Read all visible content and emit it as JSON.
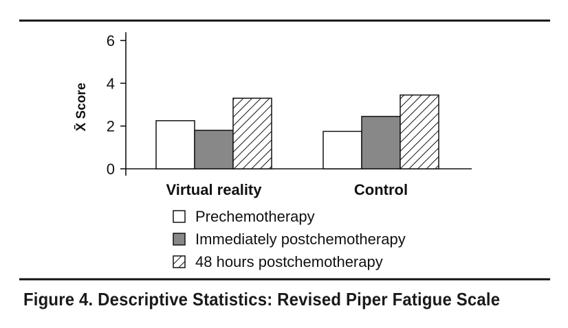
{
  "chart_data": {
    "type": "bar",
    "title": "Figure 4. Descriptive Statistics: Revised Piper Fatigue Scale",
    "xlabel": "",
    "ylabel": "X̄ Score",
    "ylim": [
      0,
      6
    ],
    "yticks": [
      "0",
      "2",
      "4",
      "6"
    ],
    "categories": [
      "Virtual reality",
      "Control"
    ],
    "series": [
      {
        "name": "Prechemotherapy",
        "values": [
          2.25,
          1.75
        ],
        "fill": "#ffffff",
        "pattern": "none"
      },
      {
        "name": "Immediately postchemotherapy",
        "values": [
          1.8,
          2.45
        ],
        "fill": "#888888",
        "pattern": "none"
      },
      {
        "name": "48 hours postchemotherapy",
        "values": [
          3.3,
          3.45
        ],
        "fill": "#ffffff",
        "pattern": "diagonal-hatch"
      }
    ],
    "legend_position": "bottom",
    "grid": false
  }
}
